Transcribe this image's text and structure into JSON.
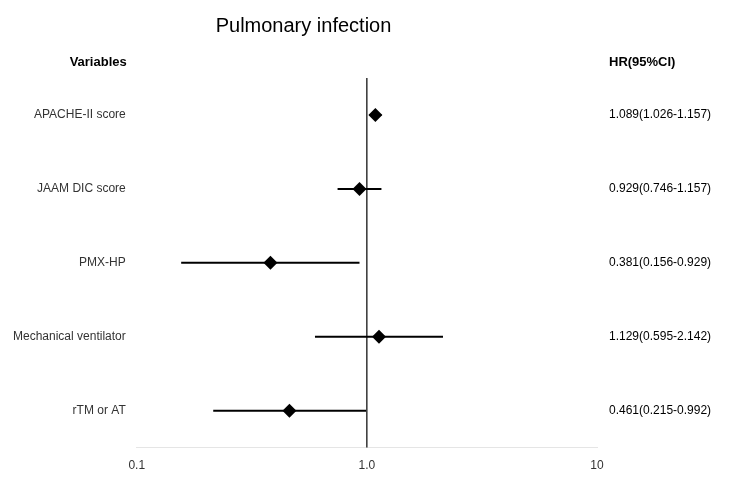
{
  "chart_data": {
    "type": "forest",
    "title": "Pulmonary infection",
    "categories": [
      "APACHE-II score",
      "JAAM DIC score",
      "PMX-HP",
      "Mechanical ventilator",
      "rTM or AT"
    ],
    "values": [
      1.089,
      0.929,
      0.381,
      1.129,
      0.461
    ],
    "ci_low": [
      1.026,
      0.746,
      0.156,
      0.595,
      0.215
    ],
    "ci_high": [
      1.157,
      1.157,
      0.929,
      2.142,
      0.992
    ],
    "value_labels": [
      "1.089(1.026-1.157)",
      "0.929(0.746-1.157)",
      "0.381(0.156-0.929)",
      "1.129(0.595-2.142)",
      "0.461(0.215-0.992)"
    ],
    "data_labels": true,
    "category_header": "Variables",
    "value_header": "HR(95%CI)",
    "ref_line": 1.0,
    "xlim": [
      0.1,
      10
    ],
    "xticks": [
      0.1,
      {
        "value": 1.0,
        "label": "1.0"
      },
      10
    ],
    "log": "x",
    "grid": false,
    "marker": "diamond",
    "color": "#000000"
  }
}
